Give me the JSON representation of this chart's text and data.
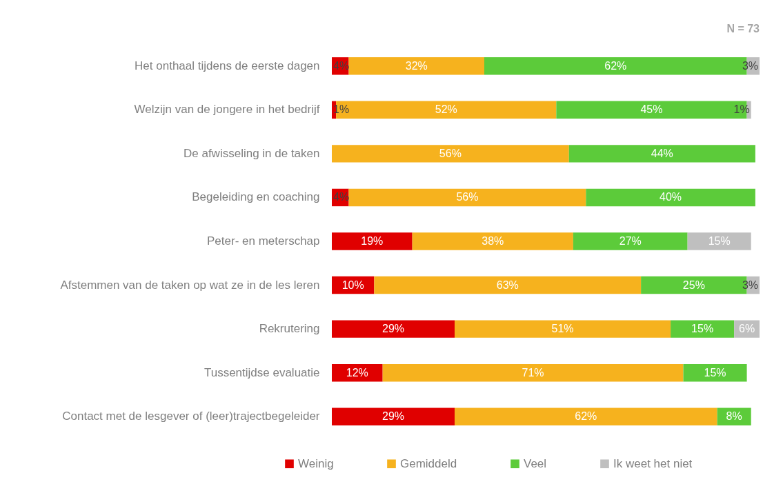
{
  "chart_data": {
    "type": "bar",
    "orientation": "horizontal",
    "stacked": true,
    "title": "N = 73",
    "categories": [
      "Het onthaal tijdens de eerste dagen",
      "Welzijn van de jongere in het bedrijf",
      "De afwisseling in de taken",
      "Begeleiding en coaching",
      "Peter- en meterschap",
      "Afstemmen van de taken op wat ze in de les leren",
      "Rekrutering",
      "Tussentijdse evaluatie",
      "Contact met de lesgever of (leer)trajectbegeleider"
    ],
    "series": [
      {
        "name": "Weinig",
        "color": "#e00000",
        "values": [
          4,
          1,
          null,
          4,
          19,
          10,
          29,
          12,
          29
        ],
        "value_labels": [
          "4%",
          "1%",
          null,
          "4%",
          "19%",
          "10%",
          "29%",
          "12%",
          "29%"
        ]
      },
      {
        "name": "Gemiddeld",
        "color": "#f6b21e",
        "values": [
          32,
          52,
          56,
          56,
          38,
          63,
          51,
          71,
          62
        ],
        "value_labels": [
          "32%",
          "52%",
          "56%",
          "56%",
          "38%",
          "63%",
          "51%",
          "71%",
          "62%"
        ]
      },
      {
        "name": "Veel",
        "color": "#5ccb3a",
        "values": [
          62,
          45,
          44,
          40,
          27,
          25,
          15,
          15,
          8
        ],
        "value_labels": [
          "62%",
          "45%",
          "44%",
          "40%",
          "27%",
          "25%",
          "15%",
          "15%",
          "8%"
        ]
      },
      {
        "name": "Ik weet het niet",
        "color": "#bfbfbf",
        "values": [
          3,
          1,
          null,
          null,
          15,
          3,
          6,
          null,
          null
        ],
        "value_labels": [
          "3%",
          "1%",
          null,
          null,
          "15%",
          "3%",
          "6%",
          null,
          null
        ]
      }
    ],
    "xlim": [
      0,
      101
    ],
    "tick_labels": "y",
    "legend": "bottom"
  }
}
